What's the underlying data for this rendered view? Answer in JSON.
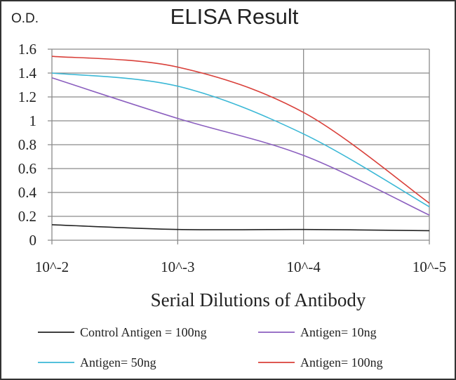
{
  "chart_data": {
    "type": "line",
    "title": "ELISA Result",
    "ylabel": "O.D.",
    "xlabel": "Serial Dilutions  of Antibody",
    "categories": [
      "10^-2",
      "10^-3",
      "10^-4",
      "10^-5"
    ],
    "ylim": [
      0,
      1.6
    ],
    "yticks": [
      "0",
      "0.2",
      "0.4",
      "0.6",
      "0.8",
      "1",
      "1.2",
      "1.4",
      "1.6"
    ],
    "grid": true,
    "legend_position": "bottom",
    "series": [
      {
        "name": "Control Antigen = 100ng",
        "color": "#222222",
        "values": [
          0.13,
          0.09,
          0.09,
          0.08
        ]
      },
      {
        "name": "Antigen= 10ng",
        "color": "#8b5fbf",
        "values": [
          1.36,
          1.02,
          0.71,
          0.21
        ]
      },
      {
        "name": "Antigen= 50ng",
        "color": "#3bb8d6",
        "values": [
          1.4,
          1.29,
          0.89,
          0.28
        ]
      },
      {
        "name": "Antigen= 100ng",
        "color": "#d9403a",
        "values": [
          1.54,
          1.45,
          1.07,
          0.31
        ]
      }
    ]
  }
}
